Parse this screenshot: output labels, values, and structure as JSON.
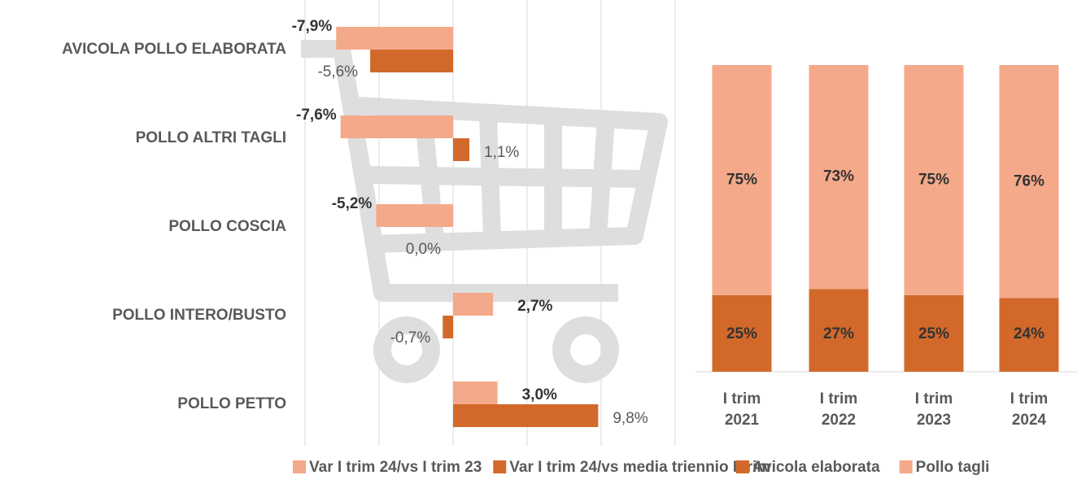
{
  "chart_data": [
    {
      "type": "hbar",
      "categories": [
        "AVICOLA POLLO ELABORATA",
        "POLLO ALTRI TAGLI",
        "POLLO COSCIA",
        "POLLO INTERO/BUSTO",
        "POLLO PETTO"
      ],
      "series": [
        {
          "name": "Var I trim 24/vs I trim 23",
          "color": "#f4a98a",
          "values": [
            -7.9,
            -7.6,
            -5.2,
            2.7,
            3.0
          ],
          "value_labels": [
            "-7,9%",
            "-7,6%",
            "-5,2%",
            "2,7%",
            "3,0%"
          ]
        },
        {
          "name": "Var I trim 24/vs media triennio I trim",
          "color": "#d2692a",
          "values": [
            -5.6,
            1.1,
            0.0,
            -0.7,
            9.8
          ],
          "value_labels": [
            "-5,6%",
            "1,1%",
            "0,0%",
            "-0,7%",
            "9,8%"
          ]
        }
      ],
      "xlim": [
        -10,
        15
      ],
      "xticks": [
        -10,
        -5,
        0,
        5,
        10,
        15
      ],
      "grid": true
    },
    {
      "type": "stacked_bar",
      "categories": [
        "I trim 2021",
        "I trim 2022",
        "I trim 2023",
        "I trim 2024"
      ],
      "series": [
        {
          "name": "Avicola elaborata",
          "color": "#d2692a",
          "values": [
            25,
            27,
            25,
            24
          ],
          "value_labels": [
            "25%",
            "27%",
            "25%",
            "24%"
          ]
        },
        {
          "name": "Pollo tagli",
          "color": "#f4a98a",
          "values": [
            75,
            73,
            75,
            76
          ],
          "value_labels": [
            "75%",
            "73%",
            "75%",
            "76%"
          ]
        }
      ],
      "ylim": [
        0,
        100
      ]
    }
  ]
}
